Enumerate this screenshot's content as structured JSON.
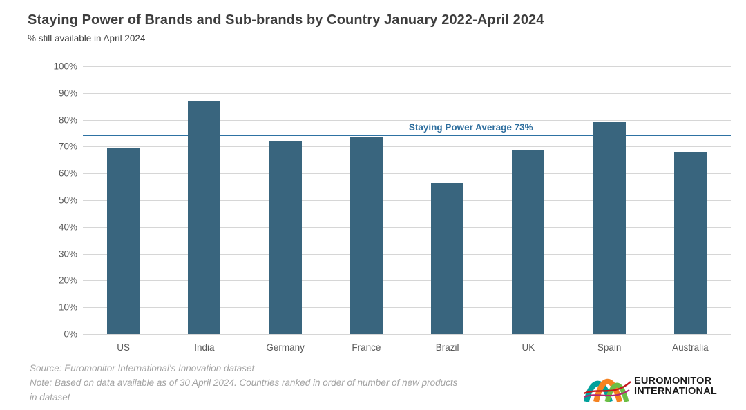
{
  "header": {
    "title": "Staying Power of Brands and Sub-brands by Country January 2022-April 2024",
    "subtitle": "% still available in April 2024"
  },
  "chart_data": {
    "type": "bar",
    "title": "Staying Power of Brands and Sub-brands by Country January 2022-April 2024",
    "subtitle": "% still available in April 2024",
    "categories": [
      "US",
      "India",
      "Germany",
      "France",
      "Brazil",
      "UK",
      "Spain",
      "Australia"
    ],
    "values": [
      69.5,
      87,
      72,
      73.5,
      56.5,
      68.5,
      79,
      68
    ],
    "xlabel": "",
    "ylabel": "% still available in April 2024",
    "ylim": [
      0,
      100
    ],
    "y_ticks": [
      "100%",
      "90%",
      "80%",
      "70%",
      "60%",
      "50%",
      "40%",
      "30%",
      "20%",
      "10%",
      "0%"
    ],
    "grid": true,
    "legend": "none",
    "average_line": {
      "label": "Staying Power Average 73%",
      "value": 73,
      "display_pct": 74.5,
      "label_left_pct": 50.3
    },
    "colors": {
      "bar": "#39657e",
      "average_line": "#2e72a3",
      "average_label": "#2e6e9e",
      "gridline": "#d6d6d6",
      "axis_text": "#595959"
    }
  },
  "footer": {
    "lines": [
      "Source: Euromonitor International's Innovation dataset",
      "Note: Based on data available as of 30 April 2024. Countries ranked in order of number of new products",
      "in dataset"
    ]
  },
  "logo": {
    "line1": "EUROMONITOR",
    "line2": "INTERNATIONAL"
  }
}
